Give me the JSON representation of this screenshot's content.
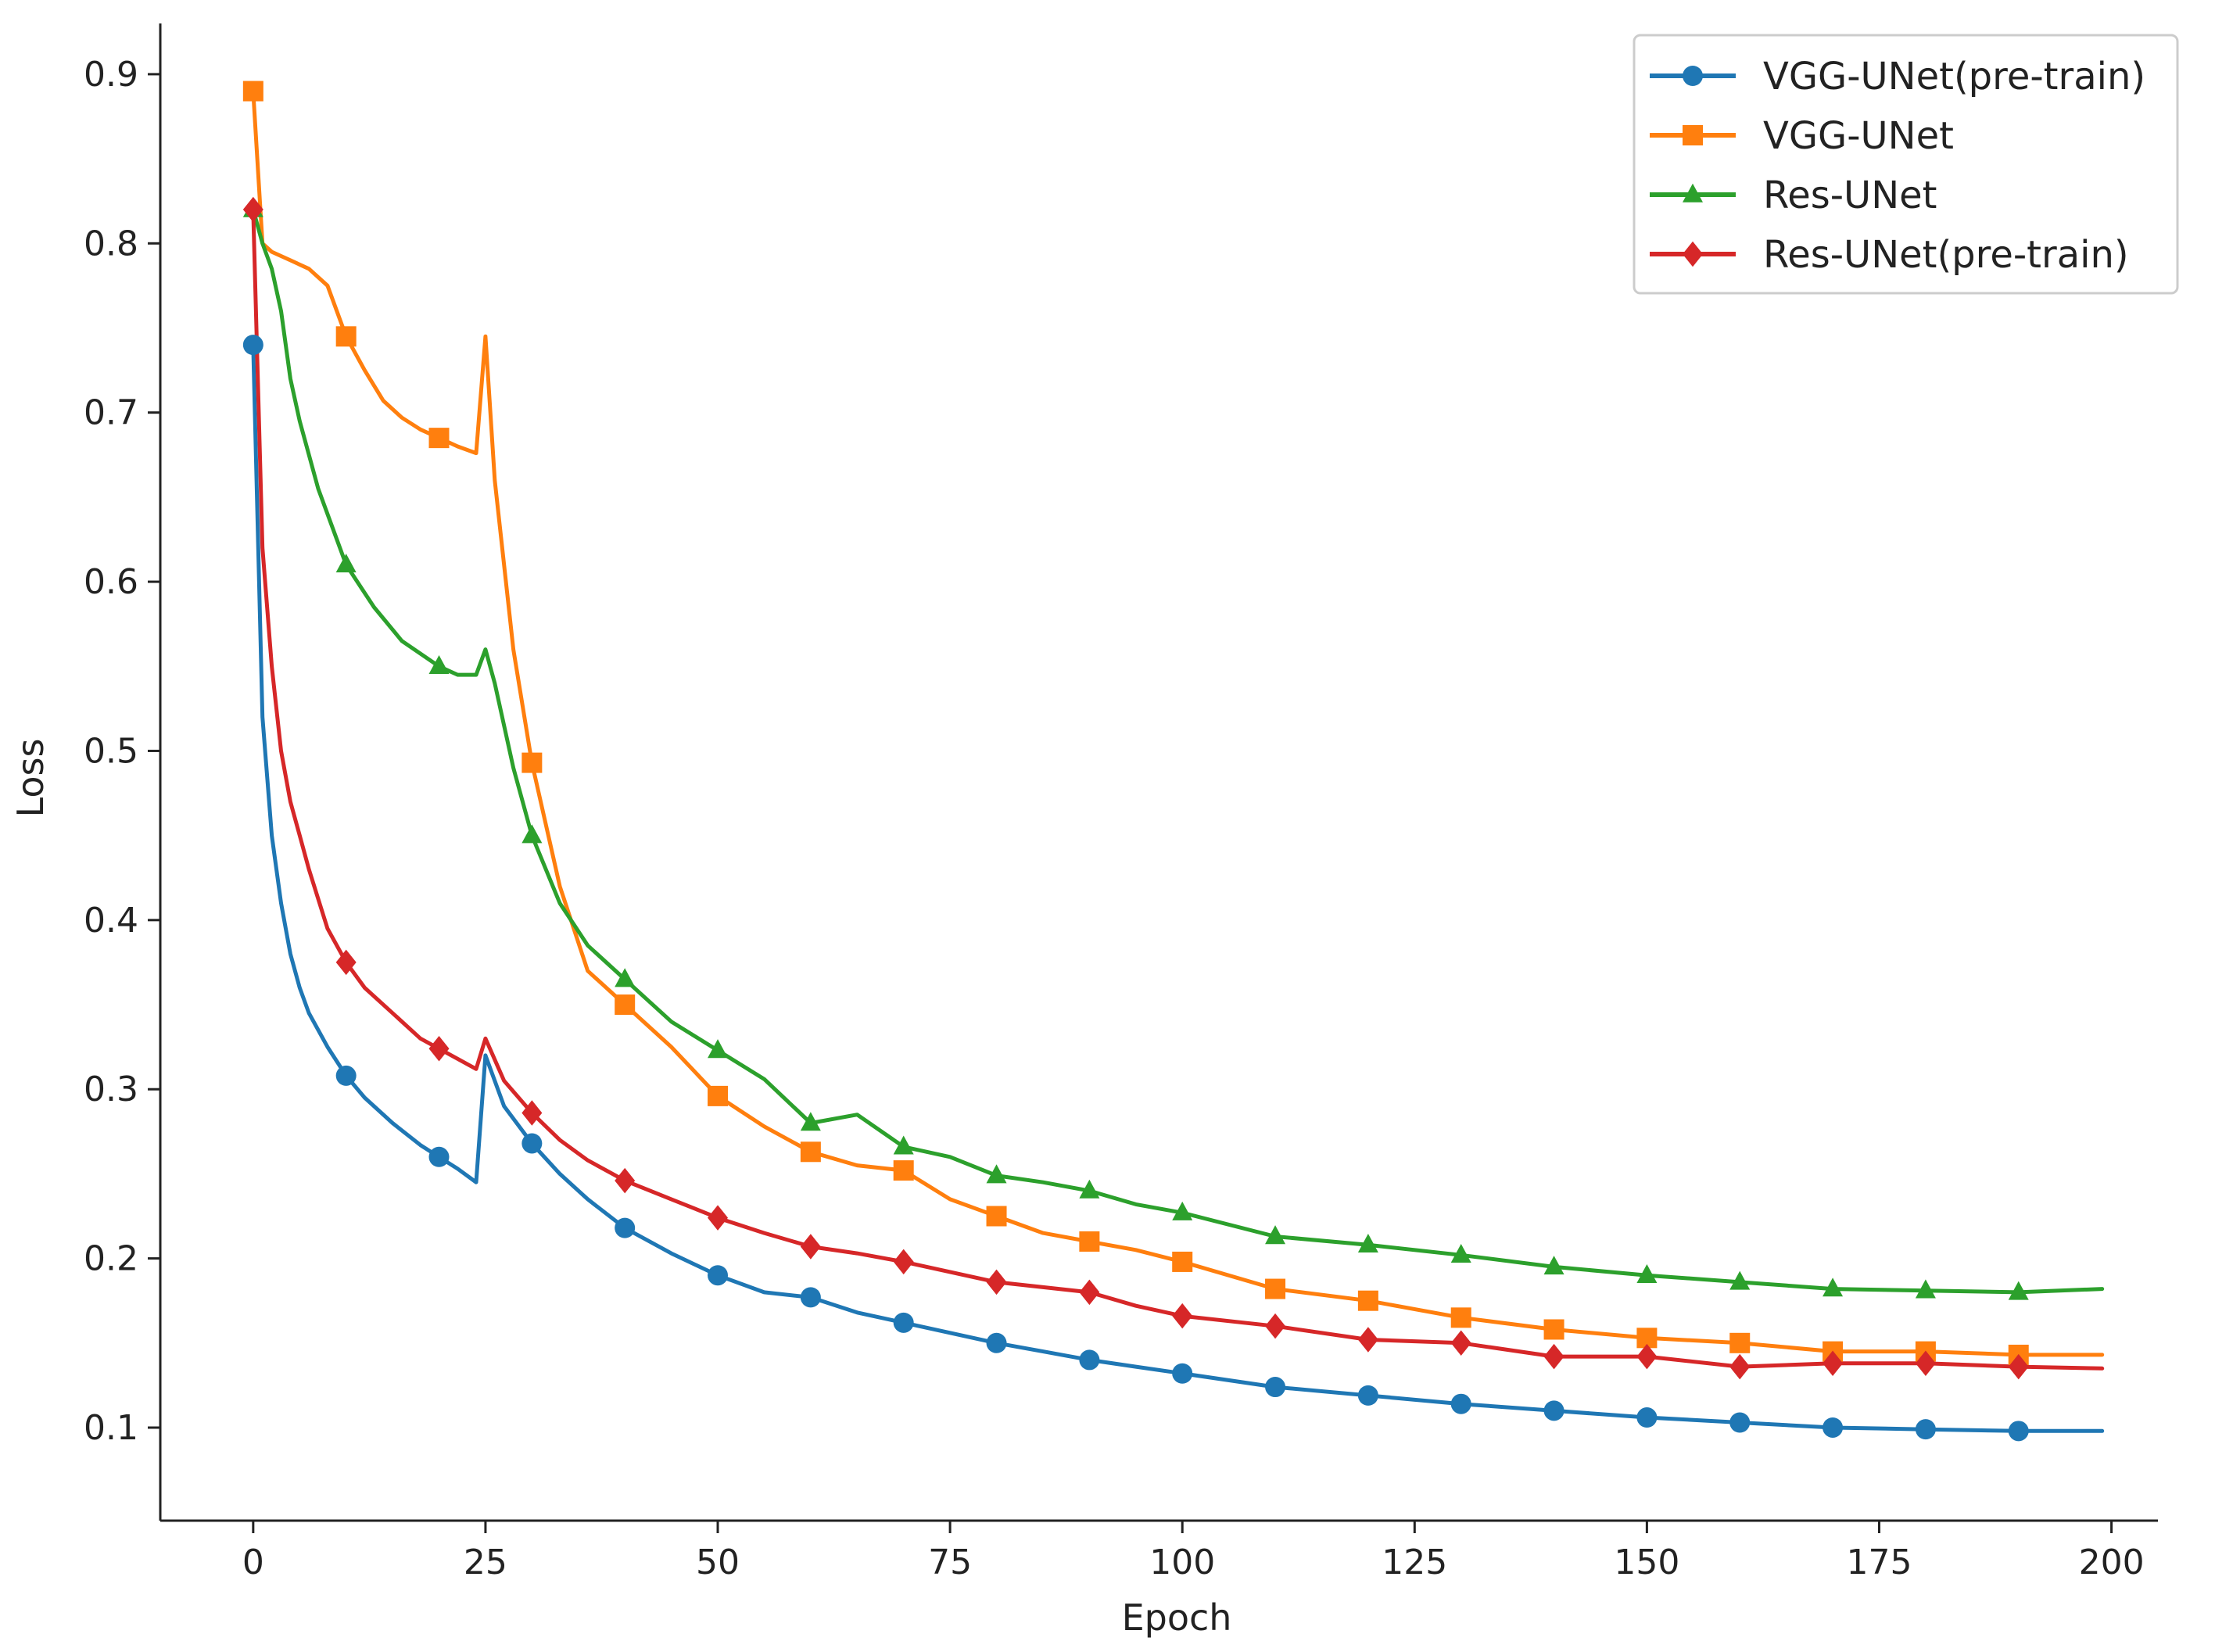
{
  "chart_data": {
    "type": "line",
    "title": "",
    "xlabel": "Epoch",
    "ylabel": "Loss",
    "xlim": [
      -10,
      205
    ],
    "ylim": [
      0.045,
      0.93
    ],
    "xticks": [
      0,
      25,
      50,
      75,
      100,
      125,
      150,
      175,
      200
    ],
    "yticks": [
      0.1,
      0.2,
      0.3,
      0.4,
      0.5,
      0.6,
      0.7,
      0.8,
      0.9
    ],
    "grid": false,
    "legend_position": "top-right",
    "series": [
      {
        "name": "VGG-UNet(pre-train)",
        "color": "#1f77b4",
        "marker": "circle",
        "x": [
          0,
          1,
          2,
          3,
          4,
          5,
          6,
          8,
          10,
          12,
          15,
          18,
          20,
          22,
          24,
          25,
          27,
          30,
          33,
          36,
          40,
          45,
          50,
          55,
          60,
          65,
          70,
          75,
          80,
          85,
          90,
          95,
          100,
          110,
          120,
          130,
          140,
          150,
          160,
          170,
          180,
          190,
          199
        ],
        "y": [
          0.74,
          0.52,
          0.45,
          0.41,
          0.38,
          0.36,
          0.345,
          0.325,
          0.308,
          0.295,
          0.28,
          0.267,
          0.26,
          0.253,
          0.245,
          0.32,
          0.29,
          0.268,
          0.25,
          0.235,
          0.218,
          0.203,
          0.19,
          0.18,
          0.177,
          0.168,
          0.162,
          0.156,
          0.15,
          0.145,
          0.14,
          0.136,
          0.132,
          0.124,
          0.119,
          0.114,
          0.11,
          0.106,
          0.103,
          0.1,
          0.099,
          0.098,
          0.098
        ]
      },
      {
        "name": "VGG-UNet",
        "color": "#ff7f0e",
        "marker": "square",
        "x": [
          0,
          1,
          2,
          4,
          6,
          8,
          9,
          10,
          12,
          14,
          16,
          18,
          20,
          22,
          24,
          25,
          26,
          28,
          30,
          33,
          36,
          40,
          45,
          50,
          55,
          60,
          65,
          70,
          75,
          80,
          85,
          90,
          95,
          100,
          110,
          120,
          130,
          140,
          150,
          160,
          170,
          180,
          190,
          199
        ],
        "y": [
          0.89,
          0.8,
          0.795,
          0.79,
          0.785,
          0.775,
          0.76,
          0.745,
          0.725,
          0.707,
          0.697,
          0.69,
          0.685,
          0.68,
          0.676,
          0.745,
          0.66,
          0.56,
          0.493,
          0.42,
          0.37,
          0.35,
          0.325,
          0.296,
          0.278,
          0.263,
          0.255,
          0.252,
          0.235,
          0.225,
          0.215,
          0.21,
          0.205,
          0.198,
          0.182,
          0.175,
          0.165,
          0.158,
          0.153,
          0.15,
          0.145,
          0.145,
          0.143,
          0.143
        ]
      },
      {
        "name": "Res-UNet",
        "color": "#2ca02c",
        "marker": "triangle",
        "x": [
          0,
          1,
          2,
          3,
          4,
          5,
          7,
          10,
          13,
          16,
          20,
          22,
          24,
          25,
          26,
          28,
          30,
          33,
          36,
          40,
          45,
          50,
          55,
          60,
          65,
          70,
          75,
          80,
          85,
          90,
          95,
          100,
          110,
          120,
          130,
          140,
          150,
          160,
          170,
          180,
          190,
          199
        ],
        "y": [
          0.82,
          0.8,
          0.785,
          0.76,
          0.72,
          0.695,
          0.655,
          0.61,
          0.585,
          0.565,
          0.55,
          0.545,
          0.545,
          0.56,
          0.54,
          0.49,
          0.45,
          0.41,
          0.385,
          0.365,
          0.34,
          0.323,
          0.306,
          0.28,
          0.285,
          0.266,
          0.26,
          0.249,
          0.245,
          0.24,
          0.232,
          0.227,
          0.213,
          0.208,
          0.202,
          0.195,
          0.19,
          0.186,
          0.182,
          0.181,
          0.18,
          0.182
        ]
      },
      {
        "name": "Res-UNet(pre-train)",
        "color": "#d62728",
        "marker": "diamond",
        "x": [
          0,
          1,
          2,
          3,
          4,
          5,
          6,
          8,
          10,
          12,
          15,
          18,
          20,
          22,
          24,
          25,
          27,
          30,
          33,
          36,
          40,
          45,
          50,
          55,
          60,
          65,
          70,
          75,
          80,
          85,
          90,
          95,
          100,
          110,
          120,
          130,
          140,
          150,
          160,
          170,
          180,
          190,
          199
        ],
        "y": [
          0.82,
          0.62,
          0.55,
          0.5,
          0.47,
          0.45,
          0.43,
          0.395,
          0.375,
          0.36,
          0.345,
          0.33,
          0.324,
          0.318,
          0.312,
          0.33,
          0.305,
          0.286,
          0.27,
          0.258,
          0.246,
          0.235,
          0.224,
          0.215,
          0.207,
          0.203,
          0.198,
          0.192,
          0.186,
          0.183,
          0.18,
          0.172,
          0.166,
          0.16,
          0.152,
          0.15,
          0.142,
          0.142,
          0.136,
          0.138,
          0.138,
          0.136,
          0.135
        ]
      }
    ],
    "markers": [
      {
        "series": 0,
        "x": [
          0,
          10,
          20,
          30,
          40,
          50,
          60,
          70,
          80,
          90,
          100,
          110,
          120,
          130,
          140,
          150,
          160,
          170,
          180,
          190
        ]
      },
      {
        "series": 1,
        "x": [
          0,
          10,
          20,
          30,
          40,
          50,
          60,
          70,
          80,
          90,
          100,
          110,
          120,
          130,
          140,
          150,
          160,
          170,
          180,
          190
        ]
      },
      {
        "series": 2,
        "x": [
          0,
          10,
          20,
          30,
          40,
          50,
          60,
          70,
          80,
          90,
          100,
          110,
          120,
          130,
          140,
          150,
          160,
          170,
          180,
          190
        ]
      },
      {
        "series": 3,
        "x": [
          0,
          10,
          20,
          30,
          40,
          50,
          60,
          70,
          80,
          90,
          100,
          110,
          120,
          130,
          140,
          150,
          160,
          170,
          180,
          190
        ]
      }
    ]
  }
}
